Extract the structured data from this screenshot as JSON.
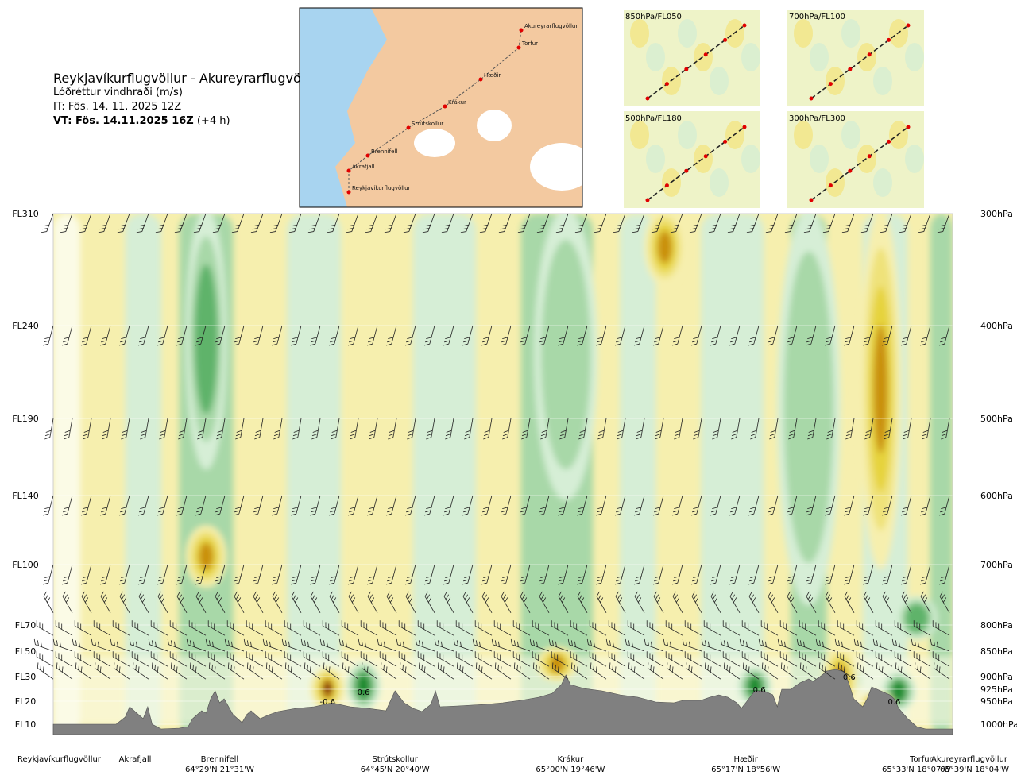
{
  "title": "Reykjavíkurflugvöllur - Akureyrarflugvöllur",
  "subtitle": "Lóðréttur vindhraði (m/s)",
  "init_time": "IT: Fös. 14. 11. 2025 12Z",
  "valid_prefix": "VT: Fös. 14.11.2025 16Z",
  "valid_suffix": "(+4 h)",
  "colors": {
    "up_strong": "#1e8a2e",
    "up_mid": "#5fb36a",
    "up_light": "#a8d8a8",
    "up_faint": "#d6eed6",
    "neutral": "#fbfbe6",
    "down_faint": "#f6efae",
    "down_light": "#efe27a",
    "down_mid": "#e6d33c",
    "down_strong": "#c9900f",
    "down_extreme": "#8a3a0f",
    "terrain": "#808080",
    "map_water": "#a8d4f0",
    "map_land": "#f3c9a0"
  },
  "map": {
    "labels": [
      "Akureyrarflugvöllur",
      "Torfur",
      "Hæðir",
      "Krákur",
      "Strútskollur",
      "Brennifell",
      "Akrafjall",
      "Reykjavíkurflugvöllur"
    ]
  },
  "insets": [
    {
      "label": "850hPa/FL050"
    },
    {
      "label": "700hPa/FL100"
    },
    {
      "label": "500hPa/FL180"
    },
    {
      "label": "300hPa/FL300"
    }
  ],
  "chart_data": {
    "type": "heatmap",
    "title": "Reykjavíkurflugvöllur - Akureyrarflugvöllur",
    "variable": "Lóðréttur vindhraði (m/s)",
    "flight_levels": [
      {
        "label": "FL310",
        "pressure": "300hPa"
      },
      {
        "label": "FL240",
        "pressure": "400hPa"
      },
      {
        "label": "FL190",
        "pressure": "500hPa"
      },
      {
        "label": "FL140",
        "pressure": "600hPa"
      },
      {
        "label": "FL100",
        "pressure": "700hPa"
      },
      {
        "label": "FL70",
        "pressure": "800hPa"
      },
      {
        "label": "FL50",
        "pressure": "850hPa"
      },
      {
        "label": "FL30",
        "pressure": "900hPa"
      },
      {
        "label": "",
        "pressure": "925hPa"
      },
      {
        "label": "FL20",
        "pressure": "950hPa"
      },
      {
        "label": "FL10",
        "pressure": "1000hPa"
      }
    ],
    "waypoints": [
      {
        "name": "Reykjavíkurflugvöllur",
        "coord": "",
        "dist": 0.0
      },
      {
        "name": "Akrafjall",
        "coord": "",
        "dist": 0.09
      },
      {
        "name": "Brennifell",
        "coord": "64°29'N 21°31'W",
        "dist": 0.185
      },
      {
        "name": "Strútskollur",
        "coord": "64°45'N 20°40'W",
        "dist": 0.38
      },
      {
        "name": "Krákur",
        "coord": "65°00'N 19°46'W",
        "dist": 0.575
      },
      {
        "name": "Hæðir",
        "coord": "65°17'N 18°56'W",
        "dist": 0.77
      },
      {
        "name": "Torfur",
        "coord": "65°33'N 18°07'W",
        "dist": 0.965
      },
      {
        "name": "Akureyrarflugvöllur",
        "coord": "65°39'N 18°04'W",
        "dist": 1.0
      }
    ],
    "contour_labels": [
      {
        "text": "-0.6",
        "dist": 0.305,
        "pressure": 950
      },
      {
        "text": "0.6",
        "dist": 0.345,
        "pressure": 930
      },
      {
        "text": "0.6",
        "dist": 0.785,
        "pressure": 925
      },
      {
        "text": "0.6",
        "dist": 0.885,
        "pressure": 900
      },
      {
        "text": "0.6",
        "dist": 0.935,
        "pressure": 950
      }
    ],
    "updraft_cores": [
      {
        "dist": 0.17,
        "pmin": 300,
        "pmax": 560,
        "strength": 2
      },
      {
        "dist": 0.345,
        "pmin": 880,
        "pmax": 960,
        "strength": 3
      },
      {
        "dist": 0.57,
        "pmin": 300,
        "pmax": 600,
        "strength": 1
      },
      {
        "dist": 0.78,
        "pmin": 890,
        "pmax": 950,
        "strength": 3
      },
      {
        "dist": 0.88,
        "pmin": 880,
        "pmax": 930,
        "strength": 3
      },
      {
        "dist": 0.94,
        "pmin": 900,
        "pmax": 960,
        "strength": 3
      },
      {
        "dist": 0.96,
        "pmin": 760,
        "pmax": 820,
        "strength": 2
      },
      {
        "dist": 0.84,
        "pmin": 300,
        "pmax": 760,
        "strength": 1
      }
    ],
    "downdraft_cores": [
      {
        "dist": 0.305,
        "pmin": 890,
        "pmax": 960,
        "strength": 3
      },
      {
        "dist": 0.56,
        "pmin": 850,
        "pmax": 900,
        "strength": 2
      },
      {
        "dist": 0.875,
        "pmin": 850,
        "pmax": 960,
        "strength": 3
      },
      {
        "dist": 0.915,
        "pmin": 940,
        "pmax": 975,
        "strength": 3
      },
      {
        "dist": 0.92,
        "pmin": 300,
        "pmax": 700,
        "strength": 2
      },
      {
        "dist": 0.17,
        "pmin": 650,
        "pmax": 730,
        "strength": 2
      },
      {
        "dist": 0.68,
        "pmin": 300,
        "pmax": 360,
        "strength": 2
      }
    ],
    "colorbar": "none",
    "legend": "none",
    "grid": true
  }
}
